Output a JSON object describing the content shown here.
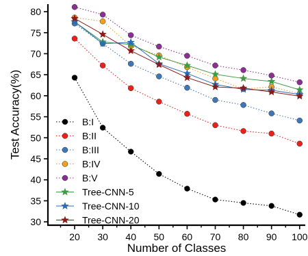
{
  "chart_data": {
    "type": "line",
    "xlabel": "Number of Classes",
    "ylabel": "Test Accuracy(%)",
    "x": [
      20,
      30,
      40,
      50,
      60,
      70,
      80,
      90,
      100
    ],
    "x_ticks": [
      20,
      30,
      40,
      50,
      60,
      70,
      80,
      90,
      100
    ],
    "y_ticks": [
      30,
      35,
      40,
      45,
      50,
      55,
      60,
      65,
      70,
      75,
      80
    ],
    "xlim": [
      10.5,
      102
    ],
    "ylim": [
      29.2,
      81.8
    ],
    "grid": false,
    "legend_position": "bottom-left",
    "series": [
      {
        "name": "B:I",
        "color": "#000000",
        "marker": "circle",
        "dash": "dotted",
        "values": [
          64.3,
          52.4,
          46.7,
          41.4,
          37.9,
          35.3,
          34.5,
          33.8,
          31.7
        ]
      },
      {
        "name": "B:II",
        "color": "#e8211b",
        "marker": "circle",
        "dash": "dotted",
        "values": [
          73.6,
          67.2,
          61.8,
          58.6,
          55.7,
          53.0,
          51.6,
          51.0,
          48.6
        ]
      },
      {
        "name": "B:III",
        "color": "#3f76b8",
        "marker": "circle",
        "dash": "dotted",
        "values": [
          77.2,
          72.4,
          67.6,
          64.6,
          61.9,
          59.0,
          57.8,
          55.8,
          54.1
        ]
      },
      {
        "name": "B:IV",
        "color": "#f4a015",
        "marker": "circle",
        "dash": "dotted",
        "values": [
          78.6,
          77.7,
          71.8,
          69.6,
          66.8,
          64.1,
          61.6,
          62.1,
          60.5
        ]
      },
      {
        "name": "B:V",
        "color": "#8b2f93",
        "marker": "circle",
        "dash": "dotted",
        "values": [
          81.1,
          79.3,
          74.4,
          71.7,
          69.5,
          67.2,
          66.1,
          64.8,
          63.2
        ]
      },
      {
        "name": "Tree-CNN-5",
        "color": "#3f9b47",
        "marker": "star",
        "dash": "solid",
        "values": [
          77.6,
          72.8,
          72.2,
          69.2,
          67.2,
          65.1,
          64.1,
          63.4,
          61.4
        ]
      },
      {
        "name": "Tree-CNN-10",
        "color": "#2c6cb5",
        "marker": "star",
        "dash": "solid",
        "values": [
          77.6,
          72.4,
          72.7,
          67.6,
          65.3,
          62.7,
          61.5,
          61.3,
          60.3
        ]
      },
      {
        "name": "Tree-CNN-20",
        "color": "#8b1a1a",
        "marker": "star",
        "dash": "solid",
        "values": [
          78.4,
          74.6,
          70.7,
          67.4,
          64.3,
          62.1,
          61.8,
          60.9,
          59.9
        ]
      }
    ]
  }
}
